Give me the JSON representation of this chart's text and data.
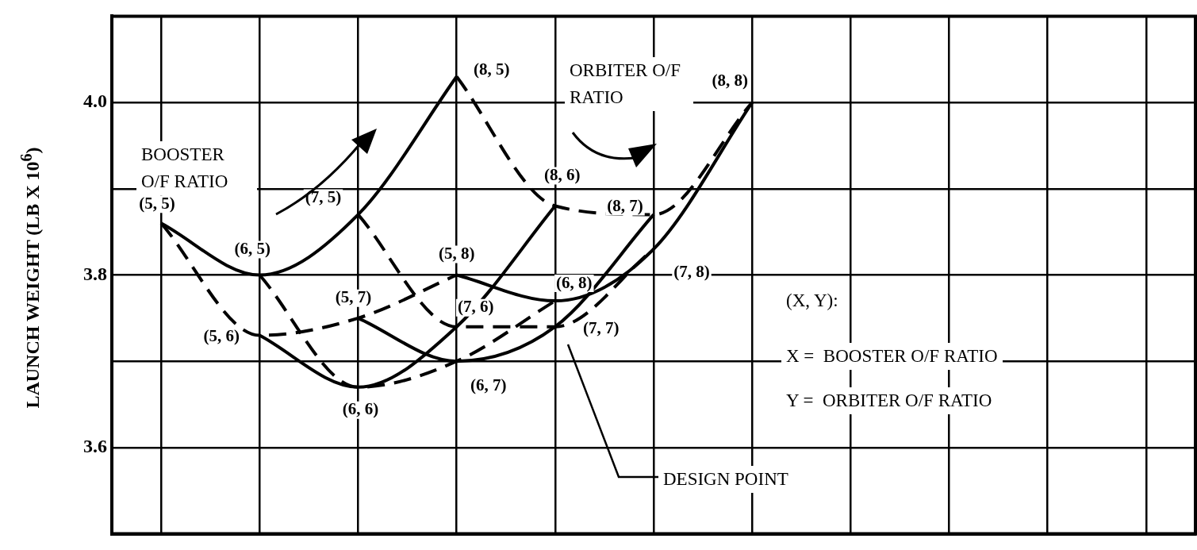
{
  "chart_data": {
    "type": "line",
    "ylabel": "LAUNCH WEIGHT (LB X 10$^{6}$)",
    "categories": [
      null,
      null,
      null,
      null,
      null,
      null,
      null,
      null,
      null,
      null,
      null
    ],
    "ylim": [
      3.5,
      4.1
    ],
    "yticks": [
      {
        "value": 3.5,
        "label": null
      },
      3.6,
      {
        "value": 3.7,
        "label": null
      },
      3.8,
      {
        "value": 3.9,
        "label": null
      },
      {
        "value": 4,
        "label": "4.0"
      }
    ],
    "tick_labels": "y",
    "grid": true,
    "marker": "none",
    "series": [
      {
        "color": "#000000",
        "line_style": "solid",
        "values": [
          3.86,
          3.8,
          3.87,
          4.03,
          null,
          null,
          null,
          null,
          null,
          null,
          null
        ],
        "value_labels": [
          "(5, 5)",
          "(6, 5)",
          "(7, 5)",
          "(8, 5)",
          null,
          null,
          null,
          null,
          null,
          null,
          null
        ]
      },
      {
        "color": "#000000",
        "line_style": "solid",
        "values": [
          null,
          3.73,
          3.67,
          3.74,
          3.88,
          null,
          null,
          null,
          null,
          null,
          null
        ],
        "value_labels": [
          null,
          "(5, 6)",
          "(6, 6)",
          "(7, 6)",
          "(8, 6)",
          null,
          null,
          null,
          null,
          null,
          null
        ]
      },
      {
        "color": "#000000",
        "line_style": "solid",
        "values": [
          null,
          null,
          3.75,
          3.7,
          3.74,
          3.87,
          null,
          null,
          null,
          null,
          null
        ],
        "value_labels": [
          null,
          null,
          "(5, 7)",
          "(6, 7)",
          "(7, 7)",
          "(8, 7)",
          null,
          null,
          null,
          null,
          null
        ]
      },
      {
        "color": "#000000",
        "line_style": "solid",
        "values": [
          null,
          null,
          null,
          3.8,
          3.77,
          3.83,
          4.0,
          null,
          null,
          null,
          null
        ],
        "value_labels": [
          null,
          null,
          null,
          "(5, 8)",
          "(6, 8)",
          "(7, 8)",
          "(8, 8)",
          null,
          null,
          null,
          null
        ]
      },
      {
        "color": "#000000",
        "line_style": "dashed",
        "values": [
          3.86,
          3.73,
          3.75,
          3.8,
          null,
          null,
          null,
          null,
          null,
          null,
          null
        ]
      },
      {
        "color": "#000000",
        "line_style": "dashed",
        "values": [
          null,
          3.8,
          3.67,
          3.7,
          3.77,
          null,
          null,
          null,
          null,
          null,
          null
        ]
      },
      {
        "color": "#000000",
        "line_style": "dashed",
        "values": [
          null,
          null,
          3.87,
          3.74,
          3.74,
          3.83,
          null,
          null,
          null,
          null,
          null
        ]
      },
      {
        "color": "#000000",
        "line_style": "dashed",
        "values": [
          null,
          null,
          null,
          4.03,
          3.88,
          3.87,
          4.0,
          null,
          null,
          null,
          null
        ]
      }
    ],
    "annotations": [
      "BOOSTER O/F RATIO",
      "ORBITER O/F RATIO",
      "(X, Y):",
      "X =  BOOSTER O/F RATIO",
      "Y =  ORBITER O/F RATIO",
      "DESIGN POINT"
    ]
  }
}
